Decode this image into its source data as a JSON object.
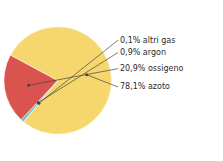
{
  "chart_data": {
    "type": "pie",
    "values": [
      0.1,
      0.9,
      20.9,
      78.1
    ],
    "value_labels": [
      "0,1% altri gas",
      "0,9% argon",
      "20,9% ossigeno",
      "78,1% azoto"
    ],
    "colors": [
      "#4db8c8",
      "#6bbfc8",
      "#d9534f",
      "#f5d76e"
    ],
    "data_labels": true
  }
}
